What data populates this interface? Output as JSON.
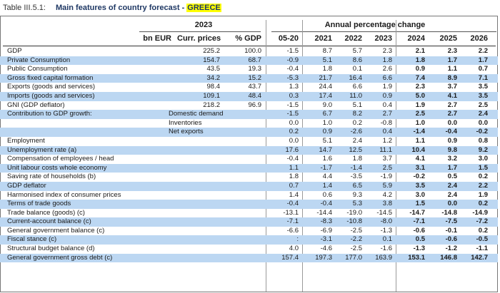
{
  "title": {
    "number": "Table III.5.1:",
    "main": "Main features of country forecast -",
    "country": "GREECE"
  },
  "header": {
    "year_group": "2023",
    "annual_group": "Annual percentage change",
    "bn_eur": "bn EUR",
    "curr_prices": "Curr. prices",
    "pct_gdp": "% GDP",
    "years": [
      "05-20",
      "2021",
      "2022",
      "2023",
      "2024",
      "2025",
      "2026"
    ]
  },
  "rows": [
    {
      "label": "GDP",
      "sub": "",
      "band": false,
      "v": [
        "225.2",
        "100.0",
        "-1.5",
        "8.7",
        "5.7",
        "2.3",
        "2.1",
        "2.3",
        "2.2"
      ]
    },
    {
      "label": "Private Consumption",
      "sub": "",
      "band": true,
      "v": [
        "154.7",
        "68.7",
        "-0.9",
        "5.1",
        "8.6",
        "1.8",
        "1.8",
        "1.7",
        "1.7"
      ]
    },
    {
      "label": "Public Consumption",
      "sub": "",
      "band": false,
      "v": [
        "43.5",
        "19.3",
        "-0.4",
        "1.8",
        "0.1",
        "2.6",
        "0.9",
        "1.1",
        "0.7"
      ]
    },
    {
      "label": "Gross fixed capital formation",
      "sub": "",
      "band": true,
      "v": [
        "34.2",
        "15.2",
        "-5.3",
        "21.7",
        "16.4",
        "6.6",
        "7.4",
        "8.9",
        "7.1"
      ]
    },
    {
      "label": "Exports (goods and services)",
      "sub": "",
      "band": false,
      "v": [
        "98.4",
        "43.7",
        "1.3",
        "24.4",
        "6.6",
        "1.9",
        "2.3",
        "3.7",
        "3.5"
      ]
    },
    {
      "label": "Imports (goods and services)",
      "sub": "",
      "band": true,
      "v": [
        "109.1",
        "48.4",
        "0.3",
        "17.4",
        "11.0",
        "0.9",
        "5.0",
        "4.1",
        "3.5"
      ]
    },
    {
      "label": "GNI (GDP deflator)",
      "sub": "",
      "band": false,
      "v": [
        "218.2",
        "96.9",
        "-1.5",
        "9.0",
        "5.1",
        "0.4",
        "1.9",
        "2.7",
        "2.5"
      ]
    },
    {
      "label": "Contribution to GDP growth:",
      "sub": "Domestic demand",
      "band": true,
      "v": [
        "",
        "",
        "-1.5",
        "6.7",
        "8.2",
        "2.7",
        "2.5",
        "2.7",
        "2.4"
      ]
    },
    {
      "label": "",
      "sub": "Inventories",
      "band": false,
      "v": [
        "",
        "",
        "0.0",
        "1.0",
        "0.2",
        "-0.8",
        "1.0",
        "0.0",
        "0.0"
      ]
    },
    {
      "label": "",
      "sub": "Net exports",
      "band": true,
      "v": [
        "",
        "",
        "0.2",
        "0.9",
        "-2.6",
        "0.4",
        "-1.4",
        "-0.4",
        "-0.2"
      ]
    },
    {
      "label": "Employment",
      "sub": "",
      "band": false,
      "v": [
        "",
        "",
        "0.0",
        "5.1",
        "2.4",
        "1.2",
        "1.1",
        "0.9",
        "0.8"
      ]
    },
    {
      "label": "Unemployment rate (a)",
      "sub": "",
      "band": true,
      "v": [
        "",
        "",
        "17.6",
        "14.7",
        "12.5",
        "11.1",
        "10.4",
        "9.8",
        "9.2"
      ]
    },
    {
      "label": "Compensation of employees / head",
      "sub": "",
      "band": false,
      "v": [
        "",
        "",
        "-0.4",
        "1.6",
        "1.8",
        "3.7",
        "4.1",
        "3.2",
        "3.0"
      ]
    },
    {
      "label": "Unit labour costs whole economy",
      "sub": "",
      "band": true,
      "v": [
        "",
        "",
        "1.1",
        "-1.7",
        "-1.4",
        "2.5",
        "3.1",
        "1.7",
        "1.5"
      ]
    },
    {
      "label": "Saving rate of households (b)",
      "sub": "",
      "band": false,
      "v": [
        "",
        "",
        "1.8",
        "4.4",
        "-3.5",
        "-1.9",
        "-0.2",
        "0.5",
        "0.2"
      ]
    },
    {
      "label": "GDP deflator",
      "sub": "",
      "band": true,
      "v": [
        "",
        "",
        "0.7",
        "1.4",
        "6.5",
        "5.9",
        "3.5",
        "2.4",
        "2.2"
      ]
    },
    {
      "label": "Harmonised index of consumer prices",
      "sub": "",
      "band": false,
      "v": [
        "",
        "",
        "1.4",
        "0.6",
        "9.3",
        "4.2",
        "3.0",
        "2.4",
        "1.9"
      ]
    },
    {
      "label": "Terms of trade goods",
      "sub": "",
      "band": true,
      "v": [
        "",
        "",
        "-0.4",
        "-0.4",
        "5.3",
        "3.8",
        "1.5",
        "0.0",
        "0.2"
      ]
    },
    {
      "label": "Trade balance (goods) (c)",
      "sub": "",
      "band": false,
      "v": [
        "",
        "",
        "-13.1",
        "-14.4",
        "-19.0",
        "-14.5",
        "-14.7",
        "-14.8",
        "-14.9"
      ]
    },
    {
      "label": "Current-account balance (c)",
      "sub": "",
      "band": true,
      "v": [
        "",
        "",
        "-7.1",
        "-8.3",
        "-10.8",
        "-8.0",
        "-7.1",
        "-7.5",
        "-7.2"
      ]
    },
    {
      "label": "General government balance (c)",
      "sub": "",
      "band": false,
      "v": [
        "",
        "",
        "-6.6",
        "-6.9",
        "-2.5",
        "-1.3",
        "-0.6",
        "-0.1",
        "0.2"
      ]
    },
    {
      "label": "Fiscal stance (c)",
      "sub": "",
      "band": true,
      "v": [
        "",
        "",
        ":",
        "-3.1",
        "-2.2",
        "0.1",
        "0.5",
        "-0.6",
        "-0.5"
      ]
    },
    {
      "label": "Structural budget balance (d)",
      "sub": "",
      "band": false,
      "v": [
        "",
        "",
        "4.0",
        "-4.6",
        "-2.5",
        "-1.6",
        "-1.3",
        "-1.2",
        "-1.1"
      ]
    },
    {
      "label": "General government gross debt (c)",
      "sub": "",
      "band": true,
      "v": [
        "",
        "",
        "157.4",
        "197.3",
        "177.0",
        "163.9",
        "153.1",
        "146.8",
        "142.7"
      ]
    }
  ]
}
